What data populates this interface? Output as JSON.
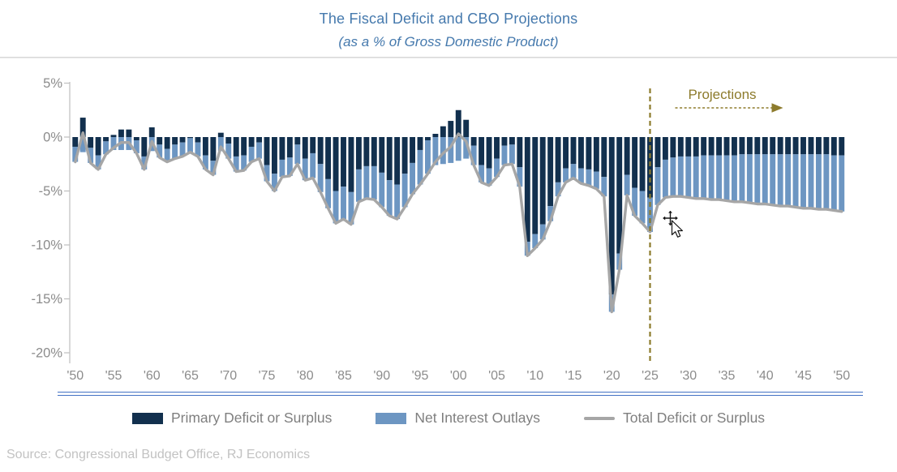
{
  "title": {
    "line1": "The Fiscal Deficit and CBO Projections",
    "line2": "(as a % of Gross Domestic Product)"
  },
  "colors": {
    "primary_bar": "#12304e",
    "interest_bar": "#6d96c2",
    "total_line": "#a6a6a6",
    "projection_accent": "#8d7b2c",
    "title_text": "#4579ad",
    "axis_text": "#8c8c8c",
    "axis_line": "#bfbfbf",
    "legend_text": "#7f7f7f",
    "source_text": "#c2c2c2",
    "x_baseline": "#4472c4"
  },
  "y_axis": {
    "tick_labels": [
      "5%",
      "0%",
      "-5%",
      "-10%",
      "-15%",
      "-20%"
    ],
    "tick_values": [
      5,
      0,
      -5,
      -10,
      -15,
      -20
    ]
  },
  "x_axis": {
    "tick_labels": [
      "'50",
      "'55",
      "'60",
      "'65",
      "'70",
      "'75",
      "'80",
      "'85",
      "'90",
      "'95",
      "'00",
      "'05",
      "'10",
      "'15",
      "'20",
      "'25",
      "'30",
      "'35",
      "'40",
      "'45",
      "'50"
    ],
    "tick_years": [
      1950,
      1955,
      1960,
      1965,
      1970,
      1975,
      1980,
      1985,
      1990,
      1995,
      2000,
      2005,
      2010,
      2015,
      2020,
      2025,
      2030,
      2035,
      2040,
      2045,
      2050
    ]
  },
  "projections": {
    "label": "Projections",
    "divider_year": 2025
  },
  "legend": {
    "items": [
      {
        "label": "Primary Deficit or Surplus",
        "color": "#12304e",
        "swatch": "box"
      },
      {
        "label": "Net Interest Outlays",
        "color": "#6d96c2",
        "swatch": "box"
      },
      {
        "label": "Total Deficit or Surplus",
        "color": "#a6a6a6",
        "swatch": "line"
      }
    ]
  },
  "source": "Source: Congressional Budget Office, RJ Economics",
  "chart_data": {
    "type": "bar",
    "subtype": "stacked-bars-with-line",
    "x_range": [
      1950,
      2050
    ],
    "x_step": 1,
    "ylim": [
      -20,
      5
    ],
    "grid": false,
    "legend_position": "bottom",
    "units": "% of GDP",
    "series": [
      {
        "name": "Primary Deficit or Surplus",
        "type": "bar",
        "color": "#12304e",
        "values": [
          -0.9,
          1.8,
          -1.0,
          -1.7,
          -0.4,
          0.2,
          0.7,
          0.7,
          -0.3,
          -1.8,
          0.9,
          -0.7,
          -1.1,
          -0.7,
          -0.5,
          -0.1,
          -0.5,
          -1.7,
          -2.2,
          0.4,
          -0.6,
          -1.8,
          -1.7,
          -0.9,
          -0.5,
          -2.6,
          -3.4,
          -2.1,
          -1.9,
          -0.7,
          -2.0,
          -1.5,
          -2.5,
          -3.9,
          -5.0,
          -4.6,
          -5.1,
          -3.0,
          -2.7,
          -2.7,
          -3.3,
          -4.0,
          -4.4,
          -3.4,
          -2.4,
          -1.2,
          -0.3,
          0.3,
          1.0,
          1.5,
          2.5,
          1.6,
          -0.8,
          -2.6,
          -2.9,
          -2.0,
          -0.8,
          -0.7,
          -2.8,
          -9.7,
          -9.0,
          -8.1,
          -6.4,
          -4.2,
          -2.9,
          -2.5,
          -2.9,
          -3.0,
          -3.2,
          -3.7,
          -14.6,
          -10.8,
          -3.5,
          -4.7,
          -5.0,
          -5.6,
          -2.8,
          -2.1,
          -1.9,
          -1.8,
          -1.8,
          -1.8,
          -1.7,
          -1.7,
          -1.7,
          -1.7,
          -1.7,
          -1.6,
          -1.6,
          -1.6,
          -1.6,
          -1.6,
          -1.6,
          -1.6,
          -1.6,
          -1.6,
          -1.6,
          -1.6,
          -1.6,
          -1.7,
          -1.7
        ]
      },
      {
        "name": "Net Interest Outlays",
        "type": "bar",
        "color": "#6d96c2",
        "values": [
          -1.4,
          -1.4,
          -1.4,
          -1.3,
          -1.2,
          -1.2,
          -1.2,
          -1.2,
          -1.2,
          -1.2,
          -1.3,
          -1.2,
          -1.2,
          -1.3,
          -1.3,
          -1.3,
          -1.3,
          -1.3,
          -1.3,
          -1.3,
          -1.4,
          -1.4,
          -1.4,
          -1.4,
          -1.5,
          -1.5,
          -1.6,
          -1.6,
          -1.7,
          -1.8,
          -2.0,
          -2.3,
          -2.6,
          -2.7,
          -3.0,
          -3.0,
          -3.0,
          -3.0,
          -3.0,
          -3.1,
          -3.2,
          -3.3,
          -3.2,
          -3.1,
          -2.9,
          -3.2,
          -3.1,
          -2.6,
          -2.5,
          -2.4,
          -2.2,
          -2.0,
          -1.8,
          -1.6,
          -1.6,
          -1.7,
          -1.8,
          -1.8,
          -1.8,
          -1.3,
          -1.3,
          -1.4,
          -1.4,
          -1.3,
          -1.3,
          -1.3,
          -1.4,
          -1.5,
          -1.6,
          -1.8,
          -1.6,
          -1.5,
          -1.9,
          -2.6,
          -3.0,
          -3.2,
          -3.5,
          -3.5,
          -3.6,
          -3.7,
          -3.8,
          -3.9,
          -4.0,
          -4.1,
          -4.1,
          -4.2,
          -4.3,
          -4.4,
          -4.5,
          -4.6,
          -4.6,
          -4.7,
          -4.8,
          -4.8,
          -4.9,
          -5.0,
          -5.0,
          -5.1,
          -5.1,
          -5.1,
          -5.2
        ]
      },
      {
        "name": "Total Deficit or Surplus",
        "type": "line",
        "color": "#a6a6a6",
        "values": [
          -2.3,
          0.4,
          -2.4,
          -3.0,
          -1.6,
          -1.0,
          -0.5,
          -0.5,
          -1.5,
          -3.0,
          -0.4,
          -1.9,
          -2.3,
          -2.0,
          -1.8,
          -1.4,
          -1.8,
          -3.0,
          -3.5,
          -0.9,
          -2.0,
          -3.2,
          -3.1,
          -2.3,
          -2.0,
          -4.1,
          -5.0,
          -3.7,
          -3.6,
          -2.5,
          -4.0,
          -3.8,
          -5.1,
          -6.6,
          -8.0,
          -7.6,
          -8.1,
          -6.0,
          -5.7,
          -5.8,
          -6.5,
          -7.3,
          -7.6,
          -6.5,
          -5.3,
          -4.4,
          -3.4,
          -2.3,
          -1.5,
          -0.9,
          0.3,
          -0.4,
          -2.6,
          -4.2,
          -4.5,
          -3.7,
          -2.6,
          -2.5,
          -4.6,
          -11.0,
          -10.3,
          -9.5,
          -7.8,
          -5.5,
          -4.2,
          -3.8,
          -4.3,
          -4.5,
          -4.8,
          -5.5,
          -16.2,
          -12.3,
          -5.4,
          -7.3,
          -8.0,
          -8.8,
          -6.3,
          -5.6,
          -5.5,
          -5.5,
          -5.6,
          -5.7,
          -5.7,
          -5.8,
          -5.8,
          -5.9,
          -6.0,
          -6.0,
          -6.1,
          -6.2,
          -6.2,
          -6.3,
          -6.4,
          -6.4,
          -6.5,
          -6.6,
          -6.6,
          -6.7,
          -6.7,
          -6.8,
          -6.9
        ]
      }
    ]
  }
}
